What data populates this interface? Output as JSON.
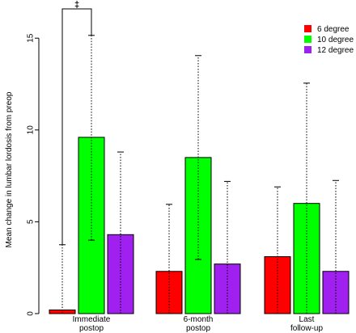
{
  "chart_data": {
    "type": "bar",
    "title": "",
    "ylabel": "Mean change in lumbar lordosis from preop",
    "xlabel": "",
    "ylim": [
      0,
      16
    ],
    "yticks": [
      "0",
      "5",
      "10",
      "15"
    ],
    "ytick_values": [
      0,
      5,
      10,
      15
    ],
    "categories": [
      [
        "Immediate",
        "postop"
      ],
      [
        "6-month",
        "postop"
      ],
      [
        "Last",
        "follow-up"
      ]
    ],
    "series": [
      {
        "name": "6 degree",
        "color": "#ff0000",
        "values": [
          0.2,
          2.3,
          3.1
        ],
        "err_low": [
          0.0,
          0.0,
          0.0
        ],
        "err_high": [
          3.75,
          5.95,
          6.9
        ]
      },
      {
        "name": "10 degree",
        "color": "#00ff00",
        "values": [
          9.6,
          8.5,
          6.0
        ],
        "err_low": [
          4.0,
          2.95,
          0.0
        ],
        "err_high": [
          15.15,
          14.05,
          12.55
        ]
      },
      {
        "name": "12 degree",
        "color": "#a020f0",
        "values": [
          4.3,
          2.7,
          2.3
        ],
        "err_low": [
          0.0,
          0.0,
          0.0
        ],
        "err_high": [
          8.8,
          7.2,
          7.25
        ]
      }
    ],
    "legend_position": "top-right",
    "annotation": "‡"
  }
}
